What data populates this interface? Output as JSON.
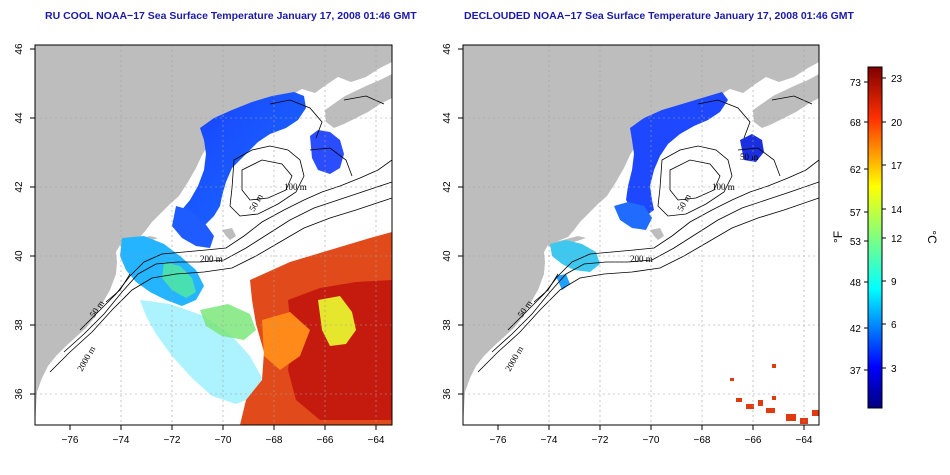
{
  "panels": [
    {
      "id": "left",
      "title": "RU COOL NOAA−17 Sea Surface Temperature January 17, 2008 01:46 GMT",
      "contour_labels": [
        "100 m",
        "50 m",
        "200 m",
        "50 m",
        "2000 m"
      ]
    },
    {
      "id": "right",
      "title": "DECLOUDED NOAA−17 Sea Surface Temperature January 17, 2008 01:46 GMT",
      "contour_labels": [
        "100 m",
        "50 m",
        "200 m",
        "50 m",
        "2000 m",
        "50 m"
      ]
    }
  ],
  "axes": {
    "lon_ticks": [
      "−76",
      "−74",
      "−72",
      "−70",
      "−68",
      "−66",
      "−64"
    ],
    "lat_ticks": [
      "36",
      "38",
      "40",
      "42",
      "44",
      "46"
    ],
    "lon_range": [
      -77,
      -63
    ],
    "lat_range": [
      35,
      46
    ]
  },
  "colorbar": {
    "fahrenheit_label": "°F",
    "celsius_label": "°C",
    "fahrenheit_ticks": [
      "73",
      "68",
      "62",
      "57",
      "53",
      "48",
      "42",
      "37"
    ],
    "celsius_ticks": [
      "23",
      "20",
      "17",
      "14",
      "12",
      "9",
      "6",
      "3"
    ],
    "colors": [
      "#00007f",
      "#0000ff",
      "#0080ff",
      "#00ffff",
      "#80ff80",
      "#ffff00",
      "#ff8000",
      "#ff0000",
      "#7f0000"
    ]
  },
  "colors": {
    "land": "#bdbdbd",
    "grid": "#a0a0a0",
    "title": "#1a1aa8"
  }
}
